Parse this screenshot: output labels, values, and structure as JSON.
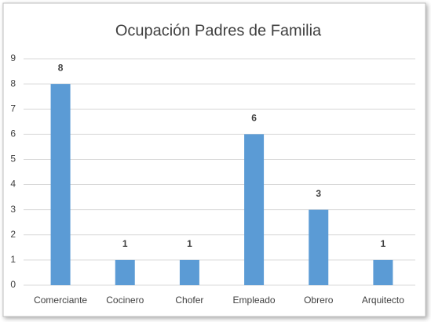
{
  "chart_data": {
    "type": "bar",
    "title": "Ocupación Padres de Familia",
    "categories": [
      "Comerciante",
      "Cocinero",
      "Chofer",
      "Empleado",
      "Obrero",
      "Arquitecto"
    ],
    "values": [
      8,
      1,
      1,
      6,
      3,
      1
    ],
    "color": "#5b9bd5",
    "ylim": [
      0,
      9
    ],
    "yticks": [
      0,
      1,
      2,
      3,
      4,
      5,
      6,
      7,
      8,
      9
    ],
    "grid": true
  }
}
